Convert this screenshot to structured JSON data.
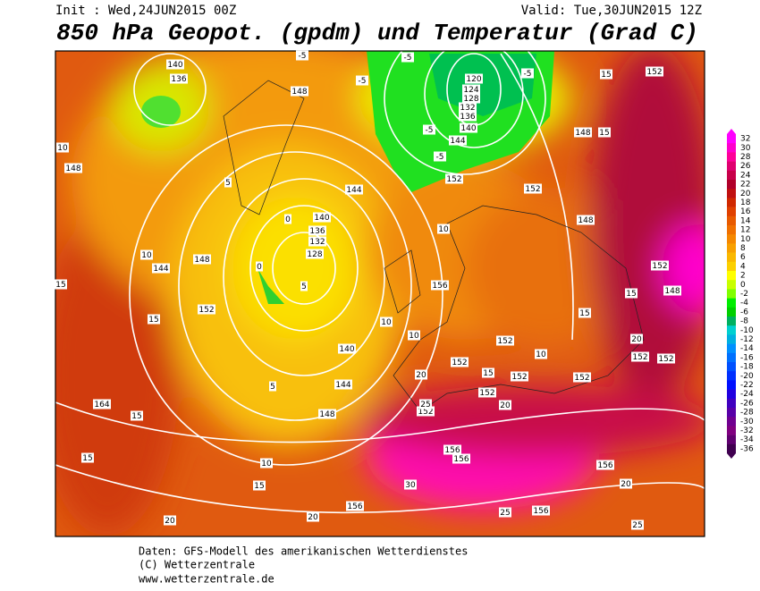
{
  "header": {
    "init": "Init : Wed,24JUN2015 00Z",
    "valid": "Valid: Tue,30JUN2015 12Z",
    "title": "850 hPa Geopot. (gpdm) und Temperatur (Grad C)"
  },
  "contour_labels": [
    "140",
    "136",
    "148",
    "120",
    "124",
    "128",
    "132",
    "136",
    "140",
    "144",
    "152",
    "148",
    "152",
    "152",
    "148",
    "148",
    "144",
    "148",
    "152",
    "140",
    "136",
    "132",
    "128",
    "144",
    "156",
    "152",
    "152",
    "148",
    "152",
    "152",
    "152",
    "152",
    "152",
    "152",
    "140",
    "144",
    "148",
    "164",
    "152",
    "156",
    "156",
    "156",
    "156",
    "156",
    "15",
    "15",
    "15",
    "15",
    "15",
    "10",
    "20",
    "20",
    "20",
    "25",
    "30",
    "25",
    "25",
    "20",
    "20",
    "15",
    "10",
    "10",
    "10",
    "10",
    "10",
    "5",
    "5",
    "5",
    "0",
    "0",
    "-5",
    "-5",
    "-5",
    "-5",
    "-5",
    "-5",
    "15",
    "15",
    "15",
    "15",
    "20",
    "10"
  ],
  "scale": {
    "values": [
      32,
      30,
      28,
      26,
      24,
      22,
      20,
      18,
      16,
      14,
      12,
      10,
      8,
      6,
      4,
      2,
      0,
      -2,
      -4,
      -6,
      -8,
      -10,
      -12,
      -14,
      -16,
      -18,
      -20,
      -22,
      -24,
      -26,
      -28,
      -30,
      -32,
      -34,
      -36
    ],
    "colors": [
      "#ff00ff",
      "#ff00cc",
      "#ff0099",
      "#e00070",
      "#c8004a",
      "#b0002a",
      "#c01010",
      "#d02800",
      "#e04000",
      "#e85a00",
      "#f07000",
      "#f58800",
      "#f8a000",
      "#fab800",
      "#fcd000",
      "#ffff00",
      "#c8ff00",
      "#80ff00",
      "#00ee00",
      "#00d000",
      "#00b060",
      "#00d0d0",
      "#00b0e0",
      "#0090ff",
      "#0070ff",
      "#0050ff",
      "#0030ff",
      "#0010ff",
      "#2000e0",
      "#4000c0",
      "#5800a8",
      "#700090",
      "#800080",
      "#600070",
      "#400050"
    ]
  },
  "footer": {
    "line1": "Daten: GFS-Modell des amerikanischen Wetterdienstes",
    "line2": "(C) Wetterzentrale",
    "line3": "www.wetterzentrale.de"
  }
}
